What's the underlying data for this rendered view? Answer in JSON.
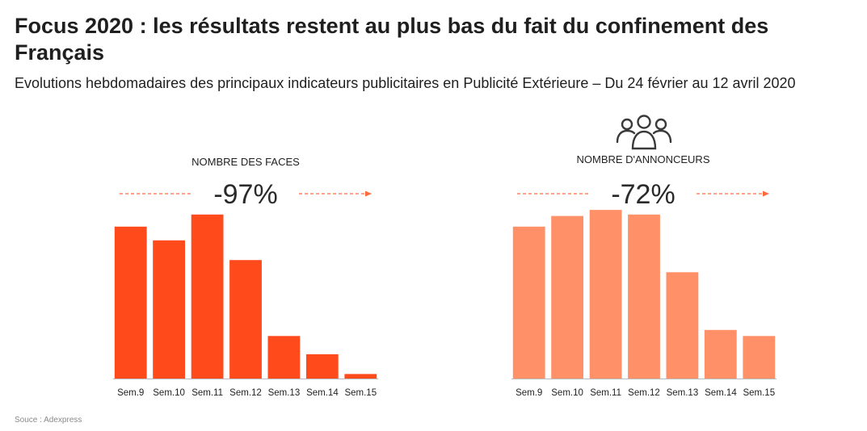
{
  "header": {
    "title": "Focus 2020 : les résultats restent au plus bas du fait du confinement des Français",
    "subtitle": "Evolutions hebdomadaires des principaux indicateurs publicitaires en Publicité Extérieure – Du 24 février au 12 avril 2020"
  },
  "source": "Souce : Adexpress",
  "panels": [
    {
      "label": "NOMBRE DES FACES",
      "delta": "-97%"
    },
    {
      "label": "NOMBRE D'ANNONCEURS",
      "delta": "-72%",
      "icon": "people-group-icon"
    }
  ],
  "colors": {
    "faces": "#ff4a1c",
    "annonceurs": "#ff9068",
    "dash": "#ff6a3d",
    "axis": "#bbbbbb"
  },
  "chart_data": [
    {
      "type": "bar",
      "title": "NOMBRE DES FACES",
      "categories": [
        "Sem.9",
        "Sem.10",
        "Sem.11",
        "Sem.12",
        "Sem.13",
        "Sem.14",
        "Sem.15"
      ],
      "values": [
        100,
        91,
        108,
        78,
        28,
        16,
        3
      ],
      "ylim": [
        0,
        110
      ],
      "grid": false,
      "legend": "none"
    },
    {
      "type": "bar",
      "title": "NOMBRE D'ANNONCEURS",
      "categories": [
        "Sem.9",
        "Sem.10",
        "Sem.11",
        "Sem.12",
        "Sem.13",
        "Sem.14",
        "Sem.15"
      ],
      "values": [
        100,
        107,
        111,
        108,
        70,
        32,
        28
      ],
      "ylim": [
        0,
        110
      ],
      "grid": false,
      "legend": "none"
    }
  ]
}
